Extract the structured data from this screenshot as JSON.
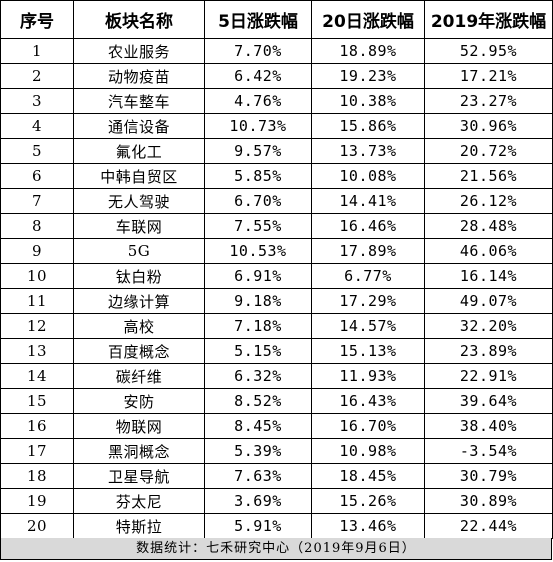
{
  "table": {
    "headers": [
      "序号",
      "板块名称",
      "5日涨跌幅",
      "20日涨跌幅",
      "2019年涨跌幅"
    ],
    "rows": [
      [
        "1",
        "农业服务",
        "7.70%",
        "18.89%",
        "52.95%"
      ],
      [
        "2",
        "动物疫苗",
        "6.42%",
        "19.23%",
        "17.21%"
      ],
      [
        "3",
        "汽车整车",
        "4.76%",
        "10.38%",
        "23.27%"
      ],
      [
        "4",
        "通信设备",
        "10.73%",
        "15.86%",
        "30.96%"
      ],
      [
        "5",
        "氟化工",
        "9.57%",
        "13.73%",
        "20.72%"
      ],
      [
        "6",
        "中韩自贸区",
        "5.85%",
        "10.08%",
        "21.56%"
      ],
      [
        "7",
        "无人驾驶",
        "6.70%",
        "14.41%",
        "26.12%"
      ],
      [
        "8",
        "车联网",
        "7.55%",
        "16.46%",
        "28.48%"
      ],
      [
        "9",
        "5G",
        "10.53%",
        "17.89%",
        "46.06%"
      ],
      [
        "10",
        "钛白粉",
        "6.91%",
        "6.77%",
        "16.14%"
      ],
      [
        "11",
        "边缘计算",
        "9.18%",
        "17.29%",
        "49.07%"
      ],
      [
        "12",
        "高校",
        "7.18%",
        "14.57%",
        "32.20%"
      ],
      [
        "13",
        "百度概念",
        "5.15%",
        "15.13%",
        "23.89%"
      ],
      [
        "14",
        "碳纤维",
        "6.32%",
        "11.93%",
        "22.91%"
      ],
      [
        "15",
        "安防",
        "8.52%",
        "16.43%",
        "39.64%"
      ],
      [
        "16",
        "物联网",
        "8.45%",
        "16.70%",
        "38.40%"
      ],
      [
        "17",
        "黑洞概念",
        "5.39%",
        "10.98%",
        "-3.54%"
      ],
      [
        "18",
        "卫星导航",
        "7.63%",
        "18.45%",
        "30.79%"
      ],
      [
        "19",
        "芬太尼",
        "3.69%",
        "15.26%",
        "30.89%"
      ],
      [
        "20",
        "特斯拉",
        "5.91%",
        "13.46%",
        "22.44%"
      ]
    ]
  },
  "footer": {
    "text": "数据统计：七禾研究中心（2019年9月6日）"
  },
  "colors": {
    "border": "#000000",
    "footer_background": "#d9d9d9",
    "text": "#000000"
  }
}
